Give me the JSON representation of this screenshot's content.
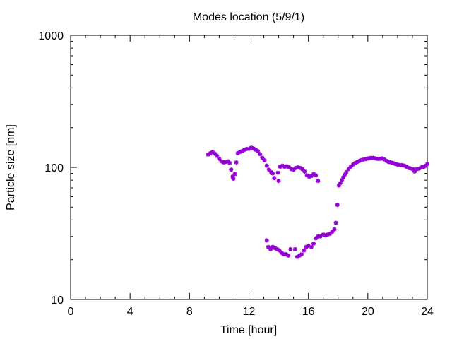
{
  "chart_data": {
    "type": "scatter",
    "title": "Modes location (5/9/1)",
    "xlabel": "Time [hour]",
    "ylabel": "Particle size [nm]",
    "xlim": [
      0,
      24
    ],
    "ylim": [
      10,
      1000
    ],
    "yscale": "log",
    "grid": false,
    "x_ticks": [
      0,
      4,
      8,
      12,
      16,
      20,
      24
    ],
    "x_tick_labels": [
      "0",
      "4",
      "8",
      "12",
      "16",
      "20",
      "24"
    ],
    "y_ticks": [
      10,
      100,
      1000
    ],
    "y_tick_labels": [
      "10",
      "100",
      "1000"
    ],
    "marker_color": "#9400d3",
    "series": [
      {
        "points": [
          [
            9.25,
            125
          ],
          [
            9.4,
            128
          ],
          [
            9.55,
            131
          ],
          [
            9.7,
            127
          ],
          [
            9.85,
            122
          ],
          [
            10.0,
            116
          ],
          [
            10.15,
            111
          ],
          [
            10.3,
            109
          ],
          [
            10.45,
            110
          ],
          [
            10.6,
            111
          ],
          [
            10.7,
            108
          ],
          [
            10.8,
            96
          ],
          [
            10.9,
            85
          ],
          [
            10.95,
            82
          ],
          [
            11.05,
            89
          ],
          [
            11.15,
            109
          ],
          [
            11.25,
            128
          ],
          [
            11.4,
            131
          ],
          [
            11.55,
            133
          ],
          [
            11.7,
            136
          ],
          [
            11.85,
            138
          ],
          [
            12.0,
            138
          ],
          [
            12.15,
            141
          ],
          [
            12.3,
            139
          ],
          [
            12.45,
            136
          ],
          [
            12.6,
            133
          ],
          [
            12.75,
            126
          ],
          [
            12.9,
            118
          ],
          [
            13.05,
            113
          ],
          [
            13.2,
            103
          ],
          [
            13.35,
            96
          ],
          [
            13.5,
            92
          ],
          [
            13.6,
            90
          ],
          [
            13.7,
            83
          ],
          [
            13.95,
            91
          ],
          [
            14.0,
            79
          ],
          [
            14.1,
            101
          ],
          [
            14.25,
            103
          ],
          [
            14.4,
            101
          ],
          [
            14.55,
            102
          ],
          [
            14.7,
            100
          ],
          [
            14.85,
            97
          ],
          [
            15.0,
            96
          ],
          [
            15.15,
            99
          ],
          [
            15.3,
            100
          ],
          [
            15.45,
            99
          ],
          [
            15.6,
            97
          ],
          [
            15.75,
            93
          ],
          [
            15.9,
            87
          ],
          [
            16.05,
            85
          ],
          [
            16.2,
            86
          ],
          [
            16.35,
            89
          ],
          [
            16.5,
            87
          ],
          [
            16.65,
            79
          ],
          [
            13.2,
            28
          ],
          [
            13.3,
            25
          ],
          [
            13.45,
            24
          ],
          [
            13.6,
            25
          ],
          [
            13.75,
            24.5
          ],
          [
            13.9,
            24
          ],
          [
            14.05,
            23.5
          ],
          [
            14.2,
            22.5
          ],
          [
            14.35,
            22
          ],
          [
            14.5,
            22
          ],
          [
            14.65,
            21.5
          ],
          [
            14.8,
            24
          ],
          [
            15.1,
            24
          ],
          [
            15.25,
            21
          ],
          [
            15.4,
            21.5
          ],
          [
            15.55,
            22
          ],
          [
            15.7,
            23.5
          ],
          [
            15.85,
            25
          ],
          [
            16.0,
            25.5
          ],
          [
            16.2,
            25
          ],
          [
            16.35,
            26.5
          ],
          [
            16.5,
            29
          ],
          [
            16.65,
            30
          ],
          [
            16.8,
            30
          ],
          [
            17.0,
            31
          ],
          [
            17.15,
            30.5
          ],
          [
            17.3,
            31
          ],
          [
            17.45,
            31.5
          ],
          [
            17.6,
            32.5
          ],
          [
            17.75,
            34
          ],
          [
            17.85,
            38
          ],
          [
            17.95,
            52
          ],
          [
            18.05,
            73
          ],
          [
            18.15,
            76
          ],
          [
            18.25,
            80
          ],
          [
            18.35,
            84
          ],
          [
            18.45,
            88
          ],
          [
            18.55,
            92
          ],
          [
            18.7,
            97
          ],
          [
            18.85,
            101
          ],
          [
            19.0,
            105
          ],
          [
            19.15,
            108
          ],
          [
            19.3,
            110
          ],
          [
            19.45,
            112
          ],
          [
            19.6,
            114
          ],
          [
            19.75,
            115
          ],
          [
            19.9,
            116
          ],
          [
            20.05,
            117
          ],
          [
            20.2,
            118
          ],
          [
            20.35,
            118
          ],
          [
            20.5,
            117
          ],
          [
            20.65,
            116
          ],
          [
            20.8,
            116
          ],
          [
            20.95,
            117
          ],
          [
            21.1,
            115
          ],
          [
            21.25,
            112
          ],
          [
            21.4,
            110
          ],
          [
            21.55,
            109
          ],
          [
            21.7,
            108
          ],
          [
            21.85,
            106
          ],
          [
            22.0,
            105
          ],
          [
            22.15,
            104
          ],
          [
            22.3,
            104
          ],
          [
            22.45,
            103
          ],
          [
            22.6,
            101
          ],
          [
            22.75,
            99
          ],
          [
            22.9,
            98
          ],
          [
            23.05,
            97
          ],
          [
            23.15,
            93
          ],
          [
            23.3,
            97
          ],
          [
            23.45,
            98
          ],
          [
            23.6,
            100
          ],
          [
            23.75,
            101
          ],
          [
            23.9,
            103
          ],
          [
            24.0,
            106
          ]
        ]
      }
    ]
  }
}
